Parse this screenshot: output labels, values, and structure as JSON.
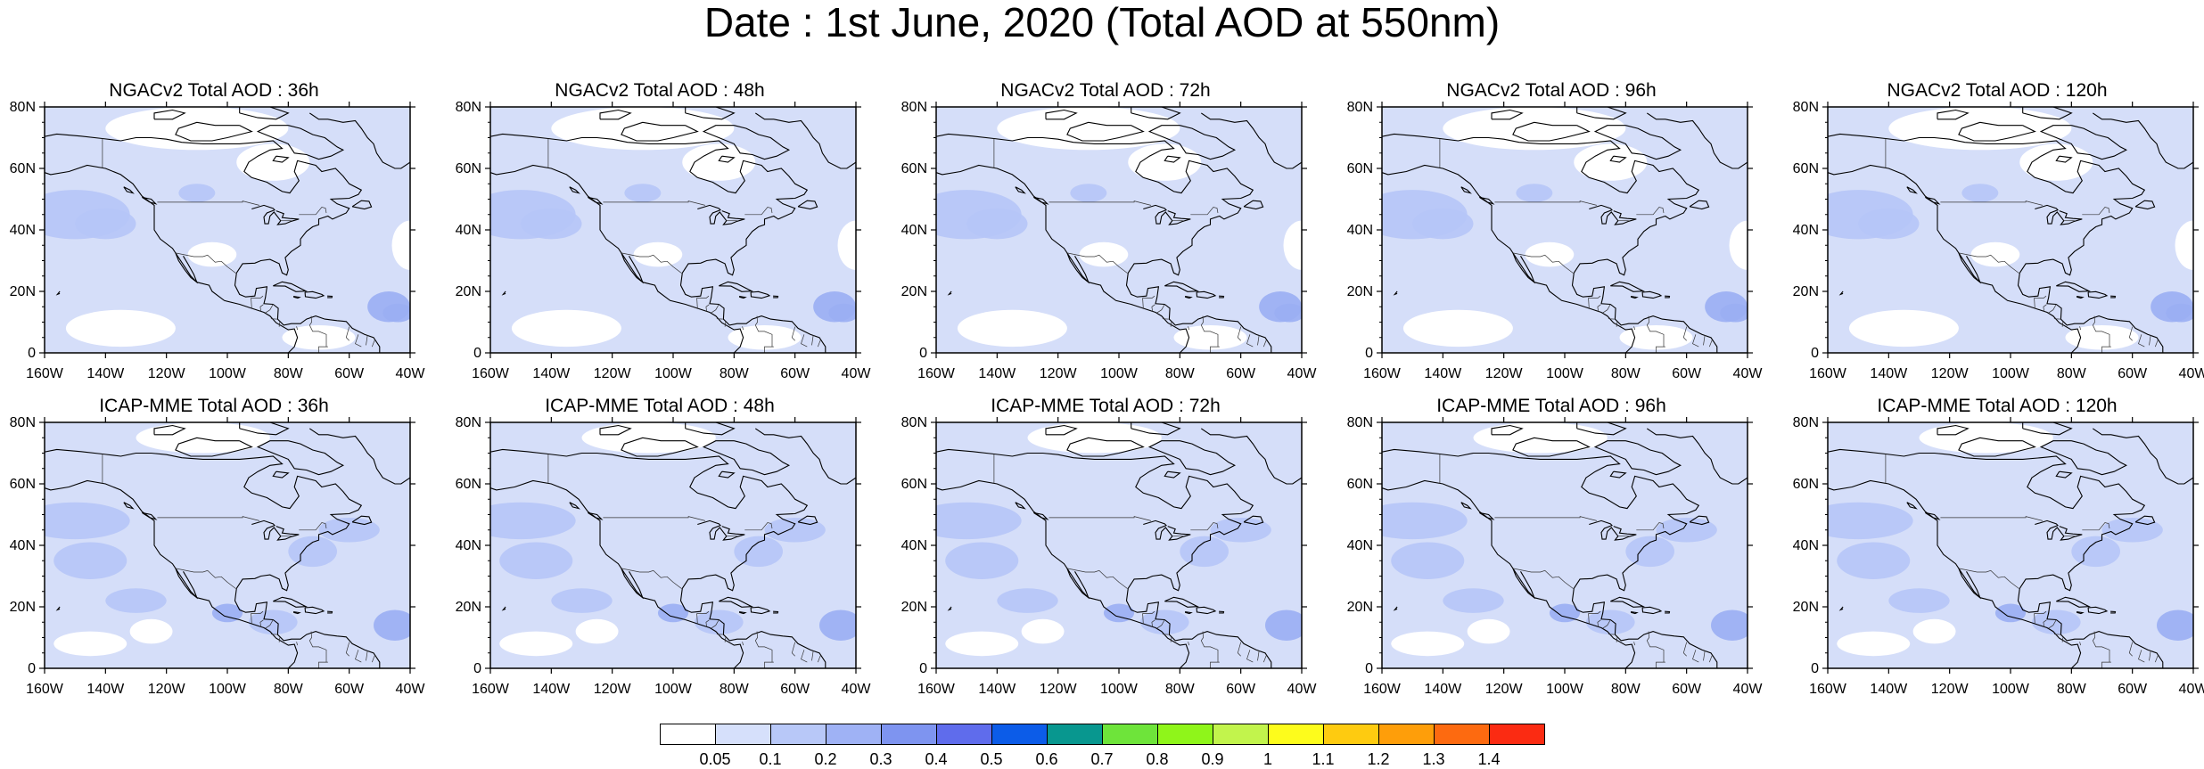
{
  "title": "Date : 1st June, 2020 (Total AOD at 550nm)",
  "y_ticks": [
    "80N",
    "60N",
    "40N",
    "20N",
    "0"
  ],
  "x_ticks": [
    "160W",
    "140W",
    "120W",
    "100W",
    "80W",
    "60W",
    "40W"
  ],
  "panels": [
    {
      "title": "NGACv2 Total AOD : 36h"
    },
    {
      "title": "NGACv2 Total AOD : 48h"
    },
    {
      "title": "NGACv2 Total AOD : 72h"
    },
    {
      "title": "NGACv2 Total AOD : 96h"
    },
    {
      "title": "NGACv2 Total AOD : 120h"
    },
    {
      "title": "ICAP-MME Total AOD : 36h"
    },
    {
      "title": "ICAP-MME Total AOD : 48h"
    },
    {
      "title": "ICAP-MME Total AOD : 72h"
    },
    {
      "title": "ICAP-MME Total AOD : 96h"
    },
    {
      "title": "ICAP-MME Total AOD : 120h"
    }
  ],
  "colorbar": {
    "labels": [
      "0.05",
      "0.1",
      "0.2",
      "0.3",
      "0.4",
      "0.5",
      "0.6",
      "0.7",
      "0.8",
      "0.9",
      "1",
      "1.1",
      "1.2",
      "1.3",
      "1.4"
    ],
    "colors": [
      "#ffffff",
      "#d6e0fb",
      "#b8c8f8",
      "#9fb2f5",
      "#7e94f0",
      "#5f6cec",
      "#0c5ce8",
      "#08978f",
      "#6ee43a",
      "#8ff51a",
      "#c2f44c",
      "#fdfc1c",
      "#fecb10",
      "#fe9e0a",
      "#fd6a10",
      "#fb2b12"
    ]
  },
  "map_colors": {
    "background": "#d5def9",
    "clear": "#ffffff",
    "medium": "#b6c5f7",
    "high": "#9aaef3",
    "coast": "#000000"
  }
}
